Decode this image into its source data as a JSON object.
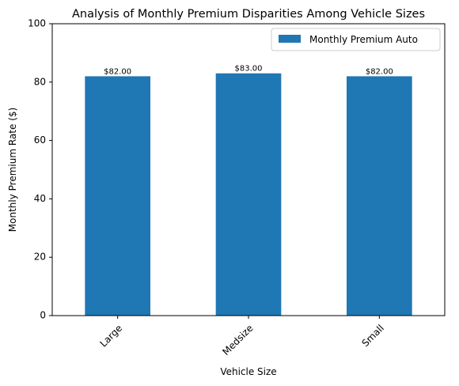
{
  "chart_data": {
    "type": "bar",
    "title": "Analysis of Monthly Premium Disparities Among Vehicle Sizes",
    "xlabel": "Vehicle Size",
    "ylabel": "Monthly Premium Rate ($)",
    "categories": [
      "Large",
      "Medsize",
      "Small"
    ],
    "series": [
      {
        "name": "Monthly Premium Auto",
        "values": [
          82,
          83,
          82
        ],
        "color": "#1f77b4"
      }
    ],
    "data_labels": [
      "$82.00",
      "$83.00",
      "$82.00"
    ],
    "ylim": [
      0,
      100
    ],
    "yticks": [
      0,
      20,
      40,
      60,
      80,
      100
    ],
    "x_tick_rotation": 45,
    "grid": false,
    "legend_position": "top-right"
  }
}
